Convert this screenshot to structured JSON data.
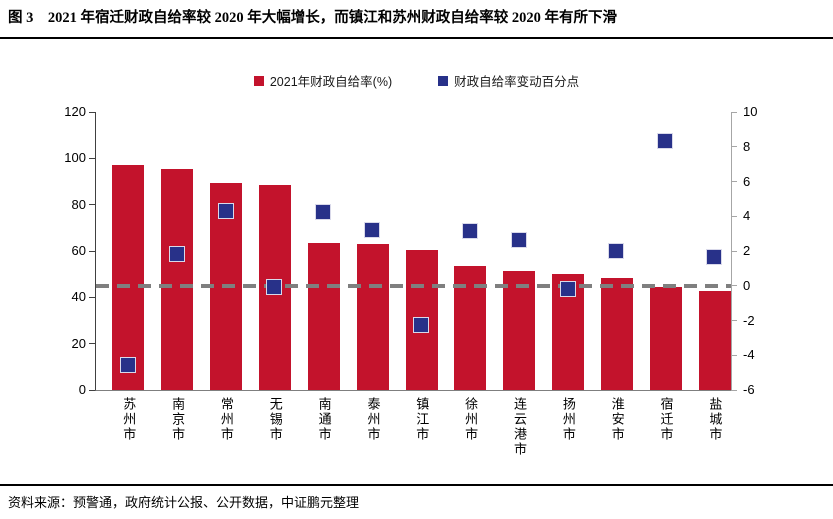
{
  "header": {
    "title": "图 3　2021 年宿迁财政自给率较 2020 年大幅增长，而镇江和苏州财政自给率较 2020 年有所下滑"
  },
  "legend": {
    "items": [
      {
        "label": "2021年财政自给率(%)",
        "color": "#C3132C",
        "shape": "square"
      },
      {
        "label": "财政自给率变动百分点",
        "color": "#283189",
        "shape": "square"
      }
    ]
  },
  "footer": {
    "source": "资料来源：预警通，政府统计公报、公开数据，中证鹏元整理"
  },
  "colors": {
    "bar": "#C3132C",
    "marker": "#283189",
    "marker_border": "#d9d9ea",
    "zero_dash": "#7f7f7f",
    "axis": "#404040"
  },
  "chart_data": {
    "type": "bar",
    "title": "2021 年宿迁财政自给率较 2020 年大幅增长，而镇江和苏州财政自给率较 2020 年有所下滑",
    "categories": [
      "苏州市",
      "南京市",
      "常州市",
      "无锡市",
      "南通市",
      "泰州市",
      "镇江市",
      "徐州市",
      "连云港市",
      "扬州市",
      "淮安市",
      "宿迁市",
      "盐城市"
    ],
    "series": [
      {
        "name": "2021年财政自给率(%)",
        "type": "bar",
        "axis": "left",
        "color": "#C3132C",
        "values": [
          97.3,
          95.3,
          89.5,
          88.4,
          63.5,
          63.1,
          60.5,
          53.7,
          51.4,
          50.0,
          48.2,
          44.5,
          42.9
        ]
      },
      {
        "name": "财政自给率变动百分点",
        "type": "scatter",
        "marker": "square",
        "axis": "right",
        "color": "#283189",
        "values": [
          -4.6,
          1.8,
          4.3,
          -0.1,
          4.2,
          3.2,
          -2.3,
          3.1,
          2.6,
          -0.2,
          2.0,
          8.3,
          1.6
        ]
      }
    ],
    "left_axis": {
      "min": 0,
      "max": 120,
      "ticks": [
        0,
        20,
        40,
        60,
        80,
        100,
        120
      ]
    },
    "right_axis": {
      "min": -6,
      "max": 10,
      "ticks": [
        -6,
        -4,
        -2,
        0,
        2,
        4,
        6,
        8,
        10
      ]
    },
    "zero_line": {
      "axis": "right",
      "value": 0,
      "style": "dashed",
      "color": "#7f7f7f"
    },
    "grid": false,
    "legend_position": "top"
  }
}
